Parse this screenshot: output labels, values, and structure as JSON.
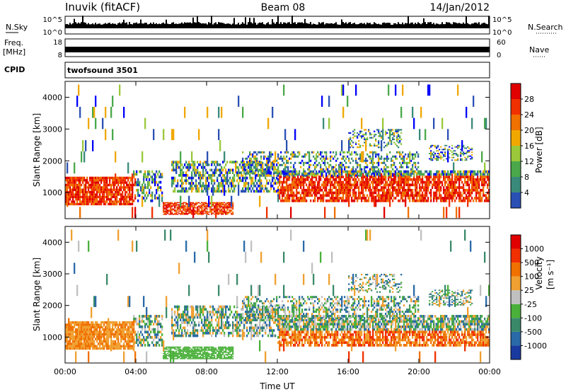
{
  "header": {
    "station": "Inuvik (fitACF)",
    "beam": "Beam 08",
    "date": "14/Jan/2012"
  },
  "strips": {
    "nsky_label": "N.Sky",
    "nsky_tick_top": "10^5",
    "nsky_tick_bottom": "10^0",
    "nsearch_label": "N.Search",
    "nsearch_tick_top": "10^5",
    "nsearch_tick_bottom": "10^0",
    "freq_label": "Freq.",
    "freq_unit": "[MHz]",
    "freq_tick_top": "18",
    "freq_tick_bottom": "8",
    "nave_label": "Nave",
    "nave_tick_top": "60",
    "nave_tick_bottom": "0",
    "cpid_label": "CPID",
    "cpid_value": "twofsound 3501"
  },
  "colors": {
    "power": [
      "#0000ff",
      "#2a50b4",
      "#3a8a7a",
      "#4aa84a",
      "#9ac83a",
      "#f0a800",
      "#f07000",
      "#f03000",
      "#e00000"
    ],
    "velocity": [
      "#1a3aa0",
      "#2a6aa8",
      "#3a8a6a",
      "#4ab03a",
      "#c0c0c0",
      "#f0a030",
      "#f07000",
      "#f03000",
      "#e00000"
    ]
  },
  "chart_data": [
    {
      "type": "heatmap",
      "name": "power-panel",
      "ylabel": "Slant Range [km]",
      "xlabel": "",
      "ylim": [
        180,
        4500
      ],
      "yticks": [
        1000,
        2000,
        3000,
        4000
      ],
      "xlim_hours": [
        0,
        24
      ],
      "xticks": [
        "00:00",
        "04:00",
        "08:00",
        "12:00",
        "16:00",
        "20:00",
        "00:00"
      ],
      "colorbar": {
        "label": "Power [dB]",
        "min": 0,
        "max": 32,
        "ticks": [
          4,
          8,
          12,
          16,
          20,
          24,
          28
        ]
      }
    },
    {
      "type": "heatmap",
      "name": "velocity-panel",
      "ylabel": "Slant Range [km]",
      "xlabel": "Time UT",
      "ylim": [
        180,
        4500
      ],
      "yticks": [
        1000,
        2000,
        3000,
        4000
      ],
      "xlim_hours": [
        0,
        24
      ],
      "xticks": [
        "00:00",
        "04:00",
        "08:00",
        "12:00",
        "16:00",
        "20:00",
        "00:00"
      ],
      "colorbar": {
        "label": "Velocity",
        "unit": "[m s⁻¹]",
        "ticks": [
          "1000",
          "500",
          "100",
          "25",
          "-25",
          "-100",
          "-500",
          "-1000"
        ]
      }
    }
  ]
}
